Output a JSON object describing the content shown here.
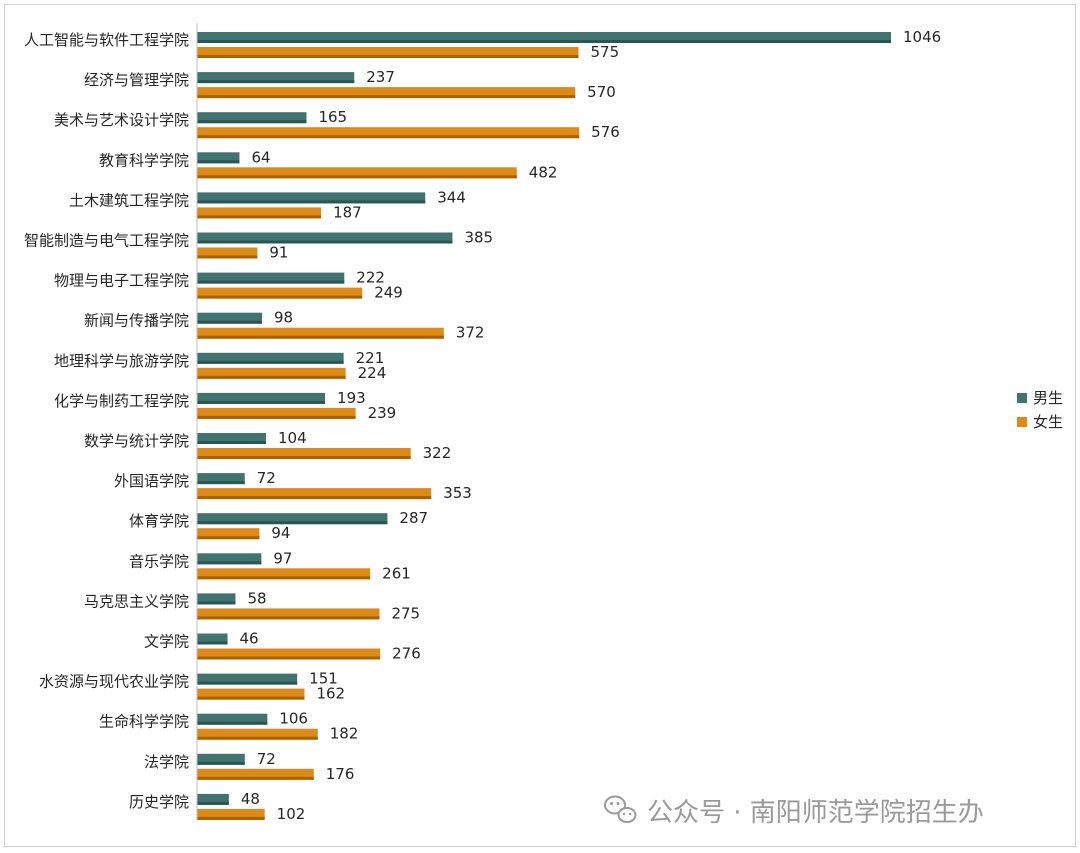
{
  "chart_data": {
    "type": "bar",
    "orientation": "horizontal",
    "categories": [
      "人工智能与软件工程学院",
      "经济与管理学院",
      "美术与艺术设计学院",
      "教育科学学院",
      "土木建筑工程学院",
      "智能制造与电气工程学院",
      "物理与电子工程学院",
      "新闻与传播学院",
      "地理科学与旅游学院",
      "化学与制药工程学院",
      "数学与统计学院",
      "外国语学院",
      "体育学院",
      "音乐学院",
      "马克思主义学院",
      "文学院",
      "水资源与现代农业学院",
      "生命科学学院",
      "法学院",
      "历史学院"
    ],
    "series": [
      {
        "name": "男生",
        "color": "#3f7470",
        "values": [
          1046,
          237,
          165,
          64,
          344,
          385,
          222,
          98,
          221,
          193,
          104,
          72,
          287,
          97,
          58,
          46,
          151,
          106,
          72,
          48
        ]
      },
      {
        "name": "女生",
        "color": "#df8a14",
        "values": [
          575,
          570,
          576,
          482,
          187,
          91,
          249,
          372,
          224,
          239,
          322,
          353,
          94,
          261,
          275,
          276,
          162,
          182,
          176,
          102
        ]
      }
    ],
    "xlim": [
      0,
      1100
    ],
    "grid": false,
    "data_labels": true,
    "legend_position": "right"
  },
  "watermark": {
    "icon": "wechat-icon",
    "text": "公众号 · 南阳师范学院招生办"
  }
}
